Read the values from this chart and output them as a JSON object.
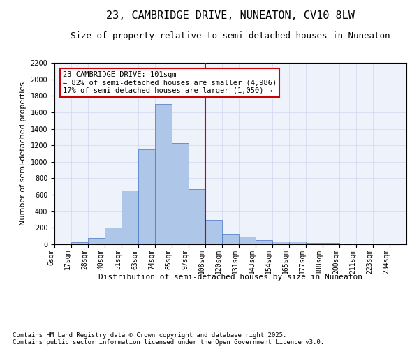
{
  "title_line1": "23, CAMBRIDGE DRIVE, NUNEATON, CV10 8LW",
  "title_line2": "Size of property relative to semi-detached houses in Nuneaton",
  "xlabel": "Distribution of semi-detached houses by size in Nuneaton",
  "ylabel": "Number of semi-detached properties",
  "footer_line1": "Contains HM Land Registry data © Crown copyright and database right 2025.",
  "footer_line2": "Contains public sector information licensed under the Open Government Licence v3.0.",
  "annotation_line1": "23 CAMBRIDGE DRIVE: 101sqm",
  "annotation_line2": "← 82% of semi-detached houses are smaller (4,986)",
  "annotation_line3": "17% of semi-detached houses are larger (1,050) →",
  "bar_labels": [
    "6sqm",
    "17sqm",
    "28sqm",
    "40sqm",
    "51sqm",
    "63sqm",
    "74sqm",
    "85sqm",
    "97sqm",
    "108sqm",
    "120sqm",
    "131sqm",
    "143sqm",
    "154sqm",
    "165sqm",
    "177sqm",
    "188sqm",
    "200sqm",
    "211sqm",
    "223sqm",
    "234sqm"
  ],
  "bar_values": [
    0,
    25,
    80,
    200,
    650,
    1150,
    1700,
    1230,
    670,
    295,
    130,
    90,
    50,
    30,
    30,
    20,
    15,
    10,
    5,
    5,
    5
  ],
  "bin_width": 11,
  "bar_color": "#aec6e8",
  "bar_edge_color": "#4472c4",
  "vline_color": "#cc0000",
  "vline_x": 9,
  "box_edge_color": "#cc0000",
  "ylim": [
    0,
    2200
  ],
  "yticks": [
    0,
    200,
    400,
    600,
    800,
    1000,
    1200,
    1400,
    1600,
    1800,
    2000,
    2200
  ],
  "grid_color": "#d0d8f0",
  "background_color": "#eef2fb",
  "title_fontsize": 11,
  "subtitle_fontsize": 9,
  "axis_label_fontsize": 8,
  "tick_fontsize": 7,
  "annotation_fontsize": 7.5,
  "footer_fontsize": 6.5
}
